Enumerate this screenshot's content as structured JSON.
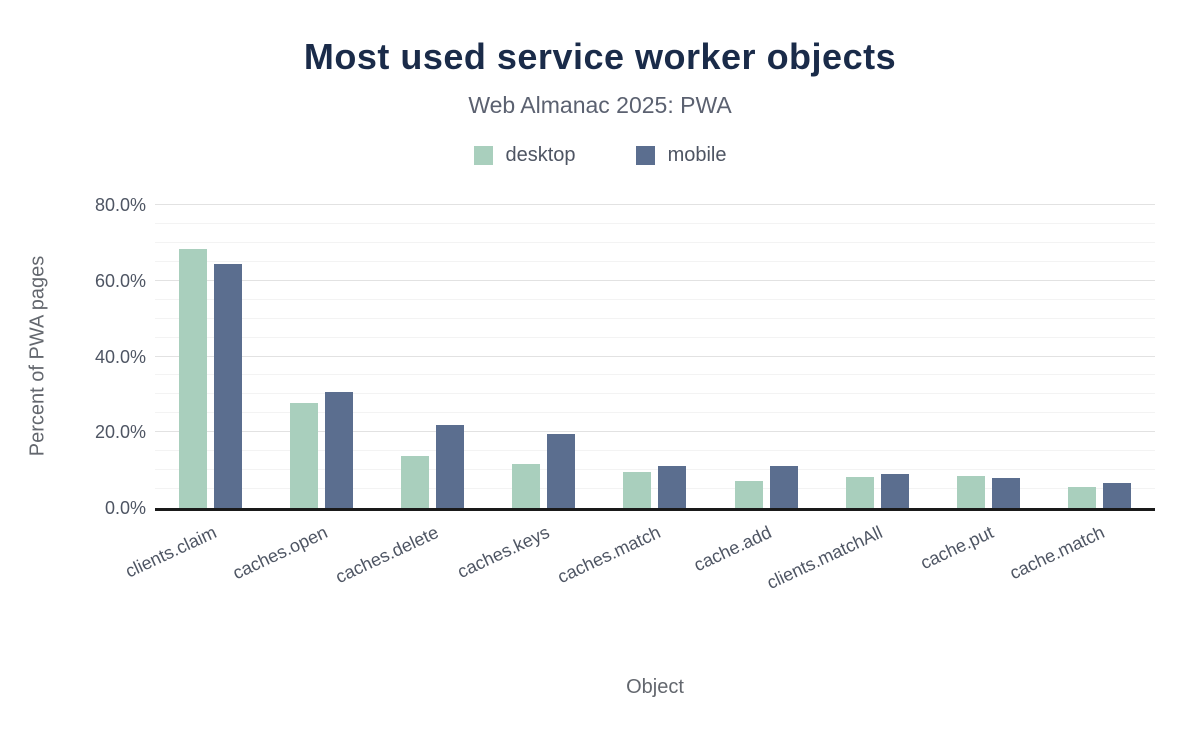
{
  "chart_data": {
    "type": "bar",
    "title": "Most used service worker objects",
    "subtitle": "Web Almanac 2025: PWA",
    "xlabel": "Object",
    "ylabel": "Percent of PWA pages",
    "ylim": [
      0,
      80
    ],
    "ytick_step": 20,
    "ytick_labels": [
      "0.0%",
      "20.0%",
      "40.0%",
      "60.0%",
      "80.0%"
    ],
    "minor_grid_step": 5,
    "grid": true,
    "legend_position": "top",
    "categories": [
      "clients.claim",
      "caches.open",
      "caches.delete",
      "caches.keys",
      "caches.match",
      "cache.add",
      "clients.matchAll",
      "cache.put",
      "cache.match"
    ],
    "series": [
      {
        "name": "desktop",
        "color": "#a9cfbd",
        "values": [
          68.5,
          27.6,
          13.7,
          11.6,
          9.4,
          7.2,
          8.3,
          8.4,
          5.6
        ]
      },
      {
        "name": "mobile",
        "color": "#5b6e8f",
        "values": [
          64.4,
          30.7,
          22.0,
          19.6,
          11.0,
          11.0,
          8.9,
          7.9,
          6.6
        ]
      }
    ]
  },
  "colors": {
    "title": "#1a2b49",
    "subtitle": "#5b6170",
    "axis_text": "#4e5563",
    "axis_title": "#63676e",
    "grid_major": "#e2e2e2",
    "grid_minor": "#f3f3f3",
    "baseline": "#1a1a1a"
  }
}
